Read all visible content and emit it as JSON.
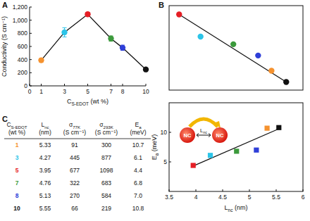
{
  "chart_data": [
    {
      "title": "A",
      "type": "line",
      "color": "#111111",
      "marker": "circle",
      "x": [
        1,
        3,
        5,
        7,
        8,
        10
      ],
      "values": [
        390,
        815,
        1090,
        720,
        580,
        250
      ],
      "errors": [
        30,
        70,
        30,
        40,
        40,
        0
      ],
      "colors": [
        "#f5922f",
        "#2cc4e8",
        "#e51e25",
        "#3c9a3c",
        "#2f3fd8",
        "#111111"
      ],
      "x_label": [
        "C",
        "S-EDOT",
        " (wt %)"
      ],
      "y_label": [
        "Conductivity (S cm⁻¹)"
      ],
      "xlim": [
        0,
        10
      ],
      "xticks": [
        0,
        1,
        3,
        5,
        7,
        8,
        10
      ],
      "ylim": [
        0,
        1200
      ],
      "yticks": [
        0,
        200,
        400,
        600,
        800,
        {
          "value": 1000,
          "label": "1,000"
        },
        {
          "value": 1200,
          "label": "1,200"
        }
      ]
    },
    {
      "title": "B",
      "type": "scatter",
      "marker": "circle",
      "tick_labels": false,
      "x": [
        5.33,
        4.27,
        3.95,
        4.76,
        5.13,
        5.55
      ],
      "values": [
        390,
        815,
        1090,
        720,
        580,
        250
      ],
      "colors": [
        "#f5922f",
        "#2cc4e8",
        "#e51e25",
        "#3c9a3c",
        "#2f3fd8",
        "#111111"
      ],
      "fit": {
        "x": [
          3.95,
          5.55
        ],
        "values": [
          1090,
          250
        ]
      },
      "xlim": [
        3.8,
        5.8
      ],
      "ylim": [
        150,
        1200
      ]
    },
    {
      "type": "scatter",
      "marker": "square",
      "x": [
        5.33,
        4.27,
        3.95,
        4.76,
        5.13,
        5.55
      ],
      "values": [
        10.7,
        6.1,
        4.4,
        6.8,
        7.0,
        10.8
      ],
      "colors": [
        "#f5922f",
        "#2cc4e8",
        "#e51e25",
        "#3c9a3c",
        "#2f3fd8",
        "#111111"
      ],
      "fit": {
        "x": [
          3.95,
          5.55
        ],
        "values": [
          4.3,
          10.6
        ]
      },
      "x_label": [
        "L",
        "nc",
        " (nm)"
      ],
      "y_label": [
        "E",
        "a",
        " (meV)"
      ],
      "xlim": [
        3.5,
        6
      ],
      "xticks": [
        3.5,
        4,
        4.5,
        5,
        5.5,
        6
      ],
      "ylim": [
        0,
        15
      ],
      "yticks": [
        5,
        10
      ],
      "inset": {
        "left": "NC",
        "right": "NC",
        "label": [
          "L",
          "nc"
        ]
      }
    }
  ],
  "table": {
    "title": "C",
    "header": [
      [
        [
          "C",
          "S-EDOT"
        ],
        [
          "(wt %)"
        ]
      ],
      [
        [
          "L",
          "nc"
        ],
        [
          "(nm)"
        ]
      ],
      [
        [
          "σ",
          "77K"
        ],
        [
          "(S cm⁻¹)"
        ]
      ],
      [
        [
          "σ",
          "293K"
        ],
        [
          "(S cm⁻¹)"
        ]
      ],
      [
        [
          "E",
          "a"
        ],
        [
          "(meV)"
        ]
      ]
    ],
    "colors": [
      "#f5922f",
      "#2cc4e8",
      "#e51e25",
      "#3c9a3c",
      "#2f3fd8",
      "#111111"
    ],
    "rows": [
      [
        "1",
        "5.33",
        "91",
        "300",
        "10.7"
      ],
      [
        "3",
        "4.27",
        "445",
        "877",
        "6.1"
      ],
      [
        "5",
        "3.95",
        "677",
        "1098",
        "4.4"
      ],
      [
        "7",
        "4.76",
        "322",
        "683",
        "6.8"
      ],
      [
        "8",
        "5.13",
        "270",
        "584",
        "7.0"
      ],
      [
        "10",
        "5.55",
        "66",
        "219",
        "10.8"
      ]
    ]
  }
}
